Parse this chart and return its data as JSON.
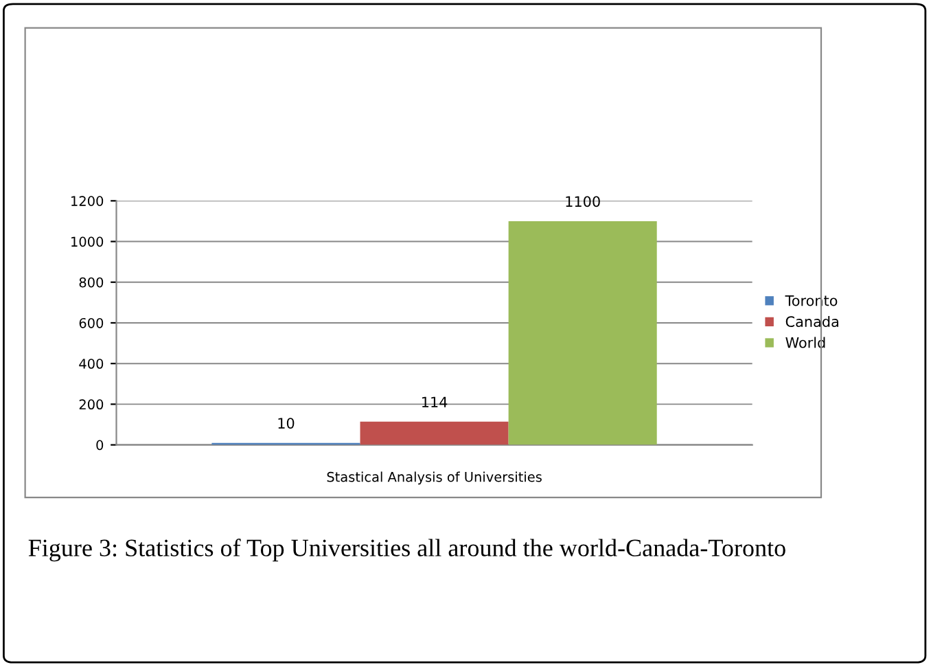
{
  "chart_data": {
    "type": "bar",
    "categories": [
      "Stastical Analysis of Universities"
    ],
    "series": [
      {
        "name": "Toronto",
        "color": "#4f81bd",
        "values": [
          10
        ]
      },
      {
        "name": "Canada",
        "color": "#c0504d",
        "values": [
          114
        ]
      },
      {
        "name": "World",
        "color": "#9bbb59",
        "values": [
          1100
        ]
      }
    ],
    "ylim": [
      0,
      1200
    ],
    "yticks": [
      0,
      200,
      400,
      600,
      800,
      1000,
      1200
    ],
    "grid": "y",
    "legend": "right",
    "data_labels": true,
    "annotations": [
      "Figure 3: Statistics of Top Universities all around the world-Canada-Toronto"
    ]
  }
}
